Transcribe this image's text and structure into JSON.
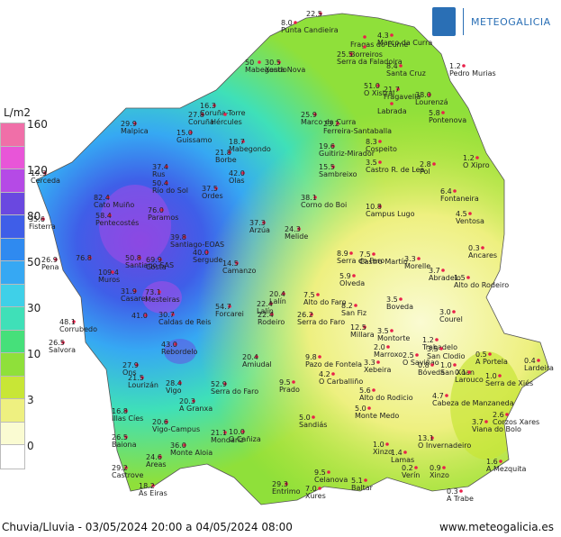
{
  "logo": {
    "text": "METEOGALICIA"
  },
  "legend": {
    "unit": "L/m2",
    "classes": [
      {
        "label": "160",
        "color": "#f06fa8"
      },
      {
        "label": "140",
        "color": "#e855d8"
      },
      {
        "label": "120",
        "color": "#b54ae6"
      },
      {
        "label": "100",
        "color": "#6a48e0"
      },
      {
        "label": "80",
        "color": "#3f5ee8"
      },
      {
        "label": "60",
        "color": "#2f8af0"
      },
      {
        "label": "50",
        "color": "#36a8f3"
      },
      {
        "label": "40",
        "color": "#3fd0e8"
      },
      {
        "label": "30",
        "color": "#3fe0b8"
      },
      {
        "label": "20",
        "color": "#46e07a"
      },
      {
        "label": "10",
        "color": "#8fe03a"
      },
      {
        "label": "5",
        "color": "#c8e636"
      },
      {
        "label": "3",
        "color": "#eef080"
      },
      {
        "label": "0.5",
        "color": "#fafbd2"
      },
      {
        "label": "0",
        "color": "#ffffff"
      }
    ]
  },
  "stations": [
    {
      "v": "8.0",
      "n": "Punta Candieira"
    },
    {
      "v": "22.5",
      "n": ""
    },
    {
      "v": "",
      "n": "Fragas do Eume"
    },
    {
      "v": "4.3",
      "n": "Marco da Curra"
    },
    {
      "v": "",
      "n": "Borreiros"
    },
    {
      "v": "25.5",
      "n": "Serra da Faladoira"
    },
    {
      "v": "1.2",
      "n": "Pedro Murias"
    },
    {
      "v": "50",
      "n": "Mabegondo"
    },
    {
      "v": "30.5",
      "n": "Xesta Nova"
    },
    {
      "v": "8.4",
      "n": "Santa Cruz"
    },
    {
      "v": "27.8",
      "n": "Coruña"
    },
    {
      "v": "51.0",
      "n": "O Xistral"
    },
    {
      "v": "21.7",
      "n": "Fragavella"
    },
    {
      "v": "38.0",
      "n": "Lourenzá"
    },
    {
      "v": "",
      "n": "Labrada"
    },
    {
      "v": "5.8",
      "n": "Pontenova"
    },
    {
      "v": "16.3",
      "n": "Coruña-Torre"
    },
    {
      "v": "",
      "n": "Hércules"
    },
    {
      "v": "29.9",
      "n": "Malpica"
    },
    {
      "v": "15.0",
      "n": "Guissamo"
    },
    {
      "v": "25.9",
      "n": "Marco da Curra"
    },
    {
      "v": "23.2",
      "n": "Ferreira-Santaballa"
    },
    {
      "v": "18.7",
      "n": "Mabegondo"
    },
    {
      "v": "21.8",
      "n": "Borbe"
    },
    {
      "v": "19.6",
      "n": "Guitiriz-Mirador"
    },
    {
      "v": "8.3",
      "n": "Cospeito"
    },
    {
      "v": "1.2",
      "n": "O Xipro"
    },
    {
      "v": "37.4",
      "n": "Rus"
    },
    {
      "v": "42.0",
      "n": "Olas"
    },
    {
      "v": "15.5",
      "n": "Sambreixo"
    },
    {
      "v": "3.5",
      "n": "Castro R. de Lea"
    },
    {
      "v": "2.8",
      "n": "Pol"
    },
    {
      "v": "19.3",
      "n": "Cerceda"
    },
    {
      "v": "50.4",
      "n": "Río do Sol"
    },
    {
      "v": "37.5",
      "n": "Ordes"
    },
    {
      "v": "6.4",
      "n": "Fontaneira"
    },
    {
      "v": "82.4",
      "n": "Cato Muiño"
    },
    {
      "v": "38.1",
      "n": "Corno do Boi"
    },
    {
      "v": "10.8",
      "n": "Campus Lugo"
    },
    {
      "v": "4.5",
      "n": "Ventosa"
    },
    {
      "v": "58.4",
      "n": "Pentecostés"
    },
    {
      "v": "76.0",
      "n": "Paramos"
    },
    {
      "v": "35.6",
      "n": "Fisterra"
    },
    {
      "v": "37.3",
      "n": "Arzúa"
    },
    {
      "v": "24.3",
      "n": "Melide"
    },
    {
      "v": "39.8",
      "n": "Santiago-EOAS"
    },
    {
      "v": "0.3",
      "n": "Ancares"
    },
    {
      "v": "26.9",
      "n": "Pena"
    },
    {
      "v": "76.8",
      "n": ""
    },
    {
      "v": "50.8",
      "n": "Santiago-SAS"
    },
    {
      "v": "69.9",
      "n": "Costa"
    },
    {
      "v": "40.0",
      "n": "Sergude"
    },
    {
      "v": "14.5",
      "n": "Camanzo"
    },
    {
      "v": "8.9",
      "n": "Serra do Faro"
    },
    {
      "v": "7.5",
      "n": "Castro Martín"
    },
    {
      "v": "3.3",
      "n": "Morelle"
    },
    {
      "v": "3.7",
      "n": "Abradelo"
    },
    {
      "v": "1.5",
      "n": "Alto do Rodeiro"
    },
    {
      "v": "109.4",
      "n": "Muros"
    },
    {
      "v": "73.1",
      "n": "Mesteiras"
    },
    {
      "v": "5.9",
      "n": "Olveda"
    },
    {
      "v": "22.4",
      "n": "Lalín"
    },
    {
      "v": "7.5",
      "n": "Alto do Faro"
    },
    {
      "v": "31.9",
      "n": "Casarel"
    },
    {
      "v": "20.4",
      "n": "Lalín"
    },
    {
      "v": "8.2",
      "n": "San Fiz"
    },
    {
      "v": "3.5",
      "n": "Boveda"
    },
    {
      "v": "3.0",
      "n": "Courel"
    },
    {
      "v": "54.7",
      "n": "Forcarei"
    },
    {
      "v": "22.4",
      "n": "Rodeiro"
    },
    {
      "v": "26.2",
      "n": "Serra do Faro"
    },
    {
      "v": "30.7",
      "n": "Caldas de Reis"
    },
    {
      "v": "48.1",
      "n": "Corrubedo"
    },
    {
      "v": "41.0",
      "n": ""
    },
    {
      "v": "12.5",
      "n": "Millara"
    },
    {
      "v": "3.5",
      "n": "Montorte"
    },
    {
      "v": "1.2",
      "n": "Trabadelo"
    },
    {
      "v": "26.5",
      "n": "Salvora"
    },
    {
      "v": "43.0",
      "n": "Rebordelo"
    },
    {
      "v": "2.0",
      "n": "Marroxo"
    },
    {
      "v": "3.5",
      "n": "San Clodio"
    },
    {
      "v": "0.5",
      "n": "A Portela"
    },
    {
      "v": "9.8",
      "n": "Pazo de Fontela"
    },
    {
      "v": "2.5",
      "n": "O Saviñao"
    },
    {
      "v": "27.9",
      "n": "Ons"
    },
    {
      "v": "20.4",
      "n": "Amiudal"
    },
    {
      "v": "3.3",
      "n": "Xebeira"
    },
    {
      "v": "0.8",
      "n": "Bóveda"
    },
    {
      "v": "1.0",
      "n": "San Xoan"
    },
    {
      "v": "0.1",
      "n": "Larouco"
    },
    {
      "v": "0.4",
      "n": "Lardeira"
    },
    {
      "v": "21.5",
      "n": "Lourizán"
    },
    {
      "v": "52.9",
      "n": "Serra do Faro"
    },
    {
      "v": "4.2",
      "n": "O Carballiño"
    },
    {
      "v": "9.5",
      "n": "Prado"
    },
    {
      "v": "5.6",
      "n": "Alto do Rodicio"
    },
    {
      "v": "1.0",
      "n": "Serra de Xiés"
    },
    {
      "v": "16.8",
      "n": "Illas Cíes"
    },
    {
      "v": "28.4",
      "n": "Vigo"
    },
    {
      "v": "20.3",
      "n": "A Granxa"
    },
    {
      "v": "5.0",
      "n": "Monte Medo"
    },
    {
      "v": "4.7",
      "n": "Cabeza de Manzaneda"
    },
    {
      "v": "2.6",
      "n": "Corzos Xares"
    },
    {
      "v": "20.6",
      "n": "Vigo-Campus"
    },
    {
      "v": "21.1",
      "n": "Mondariz"
    },
    {
      "v": "5.0",
      "n": "Sandiás"
    },
    {
      "v": "3.7",
      "n": "Viana do Bolo"
    },
    {
      "v": "26.5",
      "n": "Baiona"
    },
    {
      "v": "36.0",
      "n": "Monte Aloia"
    },
    {
      "v": "10.0",
      "n": "O Cañiza"
    },
    {
      "v": "1.0",
      "n": "Xinzo"
    },
    {
      "v": "13.1",
      "n": "O Invernadeiro"
    },
    {
      "v": "24.6",
      "n": "Areas"
    },
    {
      "v": "1.4",
      "n": "Lamas"
    },
    {
      "v": "1.6",
      "n": "A Mezquita"
    },
    {
      "v": "29.2",
      "n": "Castrove"
    },
    {
      "v": "9.5",
      "n": "Celanova"
    },
    {
      "v": "0.2",
      "n": "Verín"
    },
    {
      "v": "0.9",
      "n": "Xinzo"
    },
    {
      "v": "18.2",
      "n": "As Eiras"
    },
    {
      "v": "29.3",
      "n": "Entrimo"
    },
    {
      "v": "7.0",
      "n": "Xures"
    },
    {
      "v": "5.1",
      "n": "Baltar"
    },
    {
      "v": "0.3",
      "n": "A Trabe"
    }
  ],
  "footer": {
    "caption": "Chuvia/Lluvia - 03/05/2024 20:00 a 04/05/2024 08:00",
    "site": "www.meteogalicia.es"
  }
}
